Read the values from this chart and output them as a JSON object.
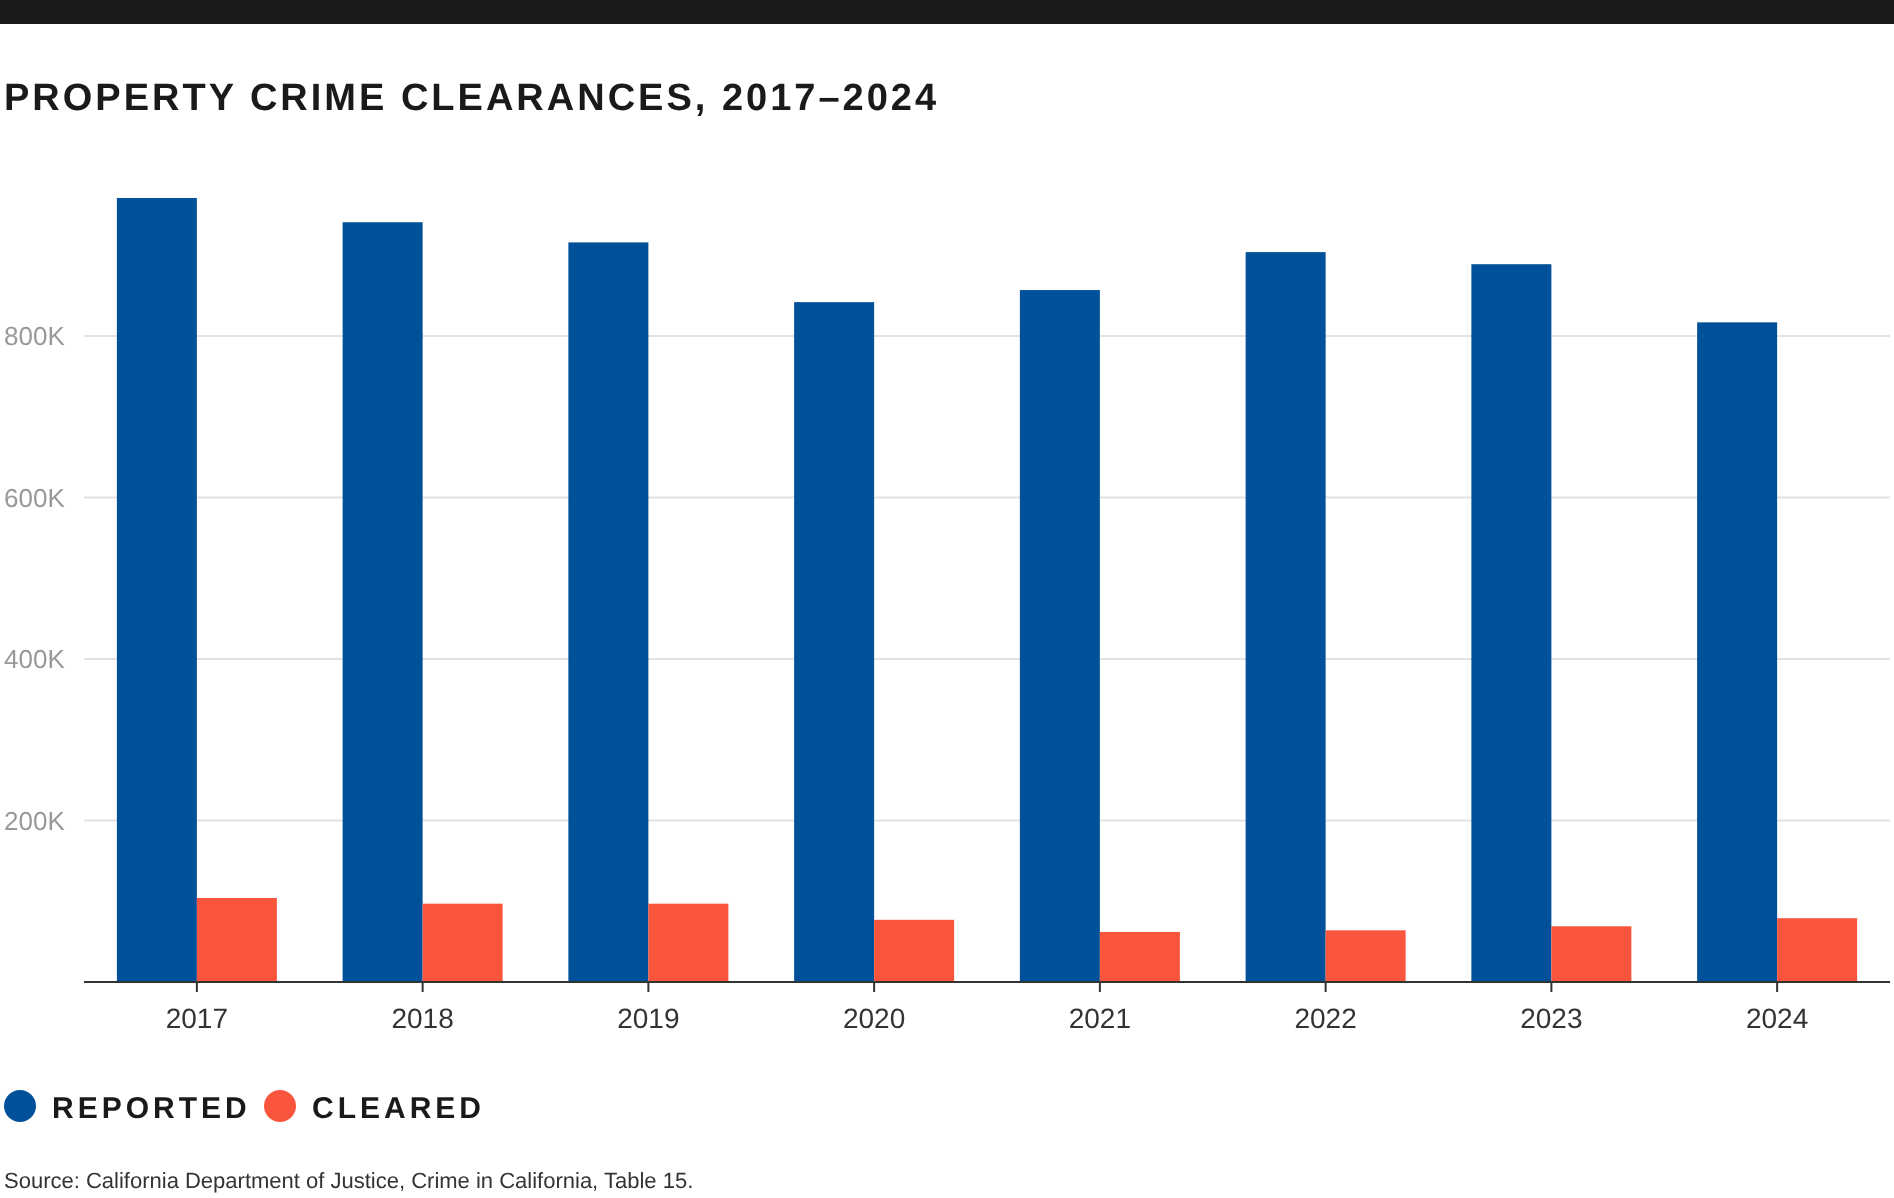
{
  "chart_data": {
    "type": "bar",
    "title": "PROPERTY CRIME CLEARANCES, 2017–2024",
    "categories": [
      "2017",
      "2018",
      "2019",
      "2020",
      "2021",
      "2022",
      "2023",
      "2024"
    ],
    "series": [
      {
        "name": "REPORTED",
        "color": "#00519a",
        "values": [
          971000,
          941000,
          916000,
          842000,
          857000,
          904000,
          889000,
          817000
        ]
      },
      {
        "name": "CLEARED",
        "color": "#f9553d",
        "values": [
          104000,
          97000,
          97000,
          77000,
          62000,
          64000,
          69000,
          79000
        ]
      }
    ],
    "ylim": [
      0,
      971000
    ],
    "yticks": [
      {
        "value": 200000,
        "label": "200K"
      },
      {
        "value": 400000,
        "label": "400K"
      },
      {
        "value": 600000,
        "label": "600K"
      },
      {
        "value": 800000,
        "label": "800K"
      }
    ],
    "grid": "y",
    "legend": "bottom",
    "annotations": [
      "Source: California Department of Justice, Crime in California, Table 15."
    ]
  }
}
